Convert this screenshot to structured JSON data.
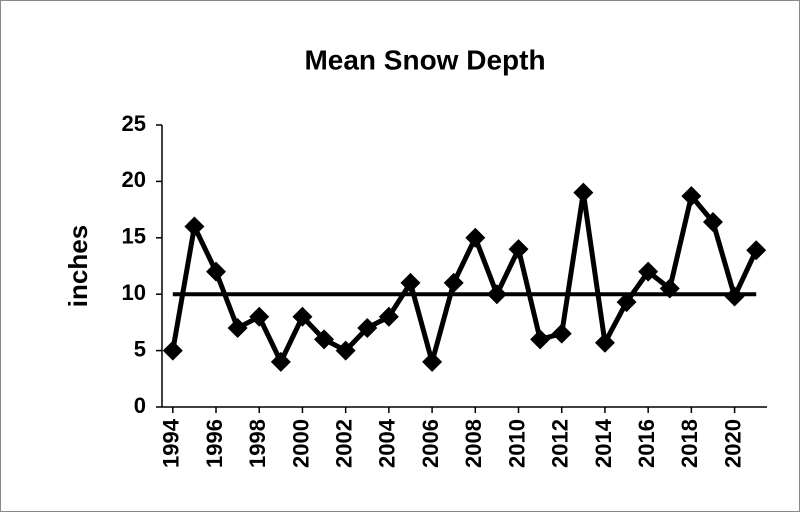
{
  "chart_data": {
    "type": "line",
    "title": "Mean Snow Depth",
    "y_label": "inches",
    "x": [
      1994,
      1995,
      1996,
      1997,
      1998,
      1999,
      2000,
      2001,
      2002,
      2003,
      2004,
      2005,
      2006,
      2007,
      2008,
      2009,
      2010,
      2011,
      2012,
      2013,
      2014,
      2015,
      2016,
      2017,
      2018,
      2019,
      2020,
      2021
    ],
    "values": [
      5,
      16,
      12,
      7,
      8,
      4,
      8,
      6,
      5,
      7,
      8,
      11,
      4,
      11,
      15,
      10,
      14,
      6,
      6.5,
      19,
      5.7,
      9.3,
      12,
      10.5,
      18.7,
      16.4,
      9.8,
      13.9
    ],
    "color": "#000000",
    "marker": "diamond",
    "reference_line": 10,
    "xlim": [
      1993.5,
      2021.5
    ],
    "xticks": [
      1994,
      1996,
      1998,
      2000,
      2002,
      2004,
      2006,
      2008,
      2010,
      2012,
      2014,
      2016,
      2018,
      2020
    ],
    "ylim": [
      0,
      25
    ],
    "yticks": [
      0,
      5,
      10,
      15,
      20,
      25
    ],
    "grid": false
  }
}
